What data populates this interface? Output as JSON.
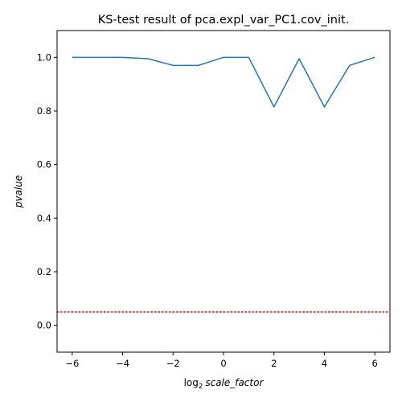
{
  "chart_data": {
    "type": "line",
    "title": "KS-test result of pca.expl_var_PC1.cov_init.",
    "xlabel": {
      "prefix": "log",
      "subscript": "2",
      "main": "scale_factor"
    },
    "ylabel": "pvalue",
    "xlim": [
      -6.6,
      6.6
    ],
    "ylim": [
      -0.1,
      1.1
    ],
    "x_ticks": [
      -6,
      -4,
      -2,
      0,
      2,
      4,
      6
    ],
    "x_tick_labels": [
      "−6",
      "−4",
      "−2",
      "0",
      "2",
      "4",
      "6"
    ],
    "y_ticks": [
      0.0,
      0.2,
      0.4,
      0.6,
      0.8,
      1.0
    ],
    "y_tick_labels": [
      "0.0",
      "0.2",
      "0.4",
      "0.6",
      "0.8",
      "1.0"
    ],
    "grid": false,
    "series": [
      {
        "color": "#1f77b4",
        "x": [
          -6,
          -5,
          -4,
          -3,
          -2,
          -1,
          0,
          1,
          2,
          3,
          4,
          5,
          6
        ],
        "y": [
          1.0,
          1.0,
          1.0,
          0.995,
          0.97,
          0.97,
          1.0,
          1.0,
          0.815,
          0.995,
          0.815,
          0.97,
          1.0
        ]
      }
    ],
    "reference_line": {
      "y": 0.05,
      "color": "#ff0000",
      "style": "dotted"
    }
  }
}
